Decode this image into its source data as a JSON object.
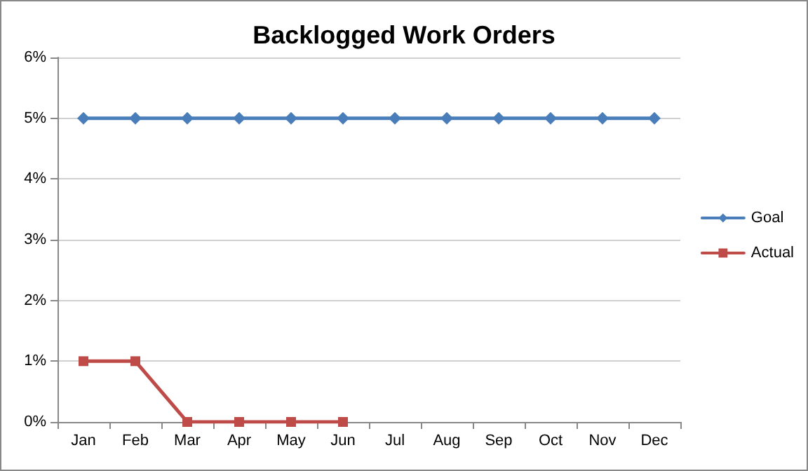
{
  "chart_data": {
    "type": "line",
    "title": "Backlogged Work Orders",
    "categories": [
      "Jan",
      "Feb",
      "Mar",
      "Apr",
      "May",
      "Jun",
      "Jul",
      "Aug",
      "Sep",
      "Oct",
      "Nov",
      "Dec"
    ],
    "series": [
      {
        "name": "Goal",
        "color": "#4a7ebb",
        "marker": "diamond",
        "values": [
          5,
          5,
          5,
          5,
          5,
          5,
          5,
          5,
          5,
          5,
          5,
          5
        ]
      },
      {
        "name": "Actual",
        "color": "#be4b48",
        "marker": "square",
        "values": [
          1,
          1,
          0,
          0,
          0,
          0,
          null,
          null,
          null,
          null,
          null,
          null
        ]
      }
    ],
    "ylim": [
      0,
      6
    ],
    "yticks": [
      {
        "value": 0,
        "label": "0%"
      },
      {
        "value": 1,
        "label": "1%"
      },
      {
        "value": 2,
        "label": "2%"
      },
      {
        "value": 3,
        "label": "3%"
      },
      {
        "value": 4,
        "label": "4%"
      },
      {
        "value": 5,
        "label": "5%"
      },
      {
        "value": 6,
        "label": "6%"
      }
    ],
    "grid": "y",
    "legend": "right",
    "line_style": "solid"
  }
}
